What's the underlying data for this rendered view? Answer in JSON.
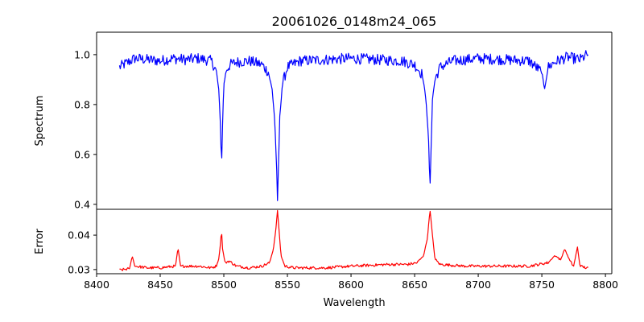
{
  "chart_data": {
    "type": "line",
    "title": "20061026_0148m24_065",
    "xlabel": "Wavelength",
    "xlim": [
      8400,
      8805
    ],
    "xticks": [
      8400,
      8450,
      8500,
      8550,
      8600,
      8650,
      8700,
      8750,
      8800
    ],
    "panels": [
      {
        "name": "spectrum",
        "ylabel": "Spectrum",
        "ylim": [
          0.38,
          1.09
        ],
        "yticks": [
          0.4,
          0.6,
          0.8,
          1.0
        ],
        "ytick_labels": [
          "0.4",
          "0.6",
          "0.8",
          "1.0"
        ],
        "color": "#0000ff",
        "baseline": 0.985,
        "noise": 0.022,
        "x": [
          8418,
          8430,
          8440,
          8450,
          8460,
          8470,
          8480,
          8490,
          8494,
          8496,
          8497.5,
          8498.2,
          8499,
          8500,
          8502,
          8505,
          8510,
          8520,
          8530,
          8535,
          8538,
          8540,
          8541.5,
          8542.2,
          8543,
          8544,
          8546,
          8550,
          8560,
          8580,
          8600,
          8620,
          8640,
          8650,
          8656,
          8659,
          8661,
          8662.1,
          8663,
          8664,
          8666,
          8670,
          8680,
          8700,
          8720,
          8740,
          8750,
          8752,
          8755,
          8760,
          8770,
          8780,
          8787
        ],
        "y": [
          0.95,
          0.985,
          0.98,
          0.975,
          0.985,
          0.98,
          0.985,
          0.975,
          0.94,
          0.86,
          0.7,
          0.54,
          0.72,
          0.88,
          0.94,
          0.96,
          0.97,
          0.975,
          0.96,
          0.93,
          0.86,
          0.74,
          0.55,
          0.41,
          0.56,
          0.75,
          0.88,
          0.95,
          0.975,
          0.98,
          0.985,
          0.98,
          0.975,
          0.96,
          0.92,
          0.82,
          0.65,
          0.46,
          0.64,
          0.82,
          0.9,
          0.95,
          0.975,
          0.985,
          0.98,
          0.975,
          0.93,
          0.86,
          0.95,
          0.97,
          0.99,
          0.98,
          1.005
        ]
      },
      {
        "name": "error",
        "ylabel": "Error",
        "ylim": [
          0.0288,
          0.0475
        ],
        "yticks": [
          0.03,
          0.04
        ],
        "ytick_labels": [
          "0.03",
          "0.04"
        ],
        "color": "#ff0000",
        "baseline": 0.0305,
        "noise": 0.0004,
        "x": [
          8418,
          8426,
          8428,
          8430,
          8440,
          8450,
          8462,
          8464,
          8466,
          8480,
          8490,
          8494,
          8496,
          8497.5,
          8498.2,
          8499,
          8501,
          8504,
          8510,
          8520,
          8530,
          8536,
          8539,
          8541,
          8542.2,
          8543.5,
          8545,
          8548,
          8555,
          8580,
          8600,
          8630,
          8645,
          8652,
          8657,
          8660,
          8662.1,
          8664,
          8666,
          8670,
          8690,
          8720,
          8740,
          8755,
          8760,
          8765,
          8768,
          8772,
          8775,
          8778,
          8780,
          8787
        ],
        "y": [
          0.0298,
          0.0303,
          0.034,
          0.031,
          0.0305,
          0.0305,
          0.031,
          0.0362,
          0.031,
          0.031,
          0.0305,
          0.031,
          0.033,
          0.038,
          0.0417,
          0.036,
          0.032,
          0.0325,
          0.031,
          0.0305,
          0.031,
          0.032,
          0.036,
          0.042,
          0.0472,
          0.041,
          0.034,
          0.031,
          0.0305,
          0.0305,
          0.031,
          0.0315,
          0.0315,
          0.032,
          0.034,
          0.039,
          0.0474,
          0.04,
          0.033,
          0.0315,
          0.031,
          0.031,
          0.031,
          0.032,
          0.034,
          0.033,
          0.036,
          0.0325,
          0.031,
          0.0365,
          0.031,
          0.0303
        ]
      }
    ]
  }
}
